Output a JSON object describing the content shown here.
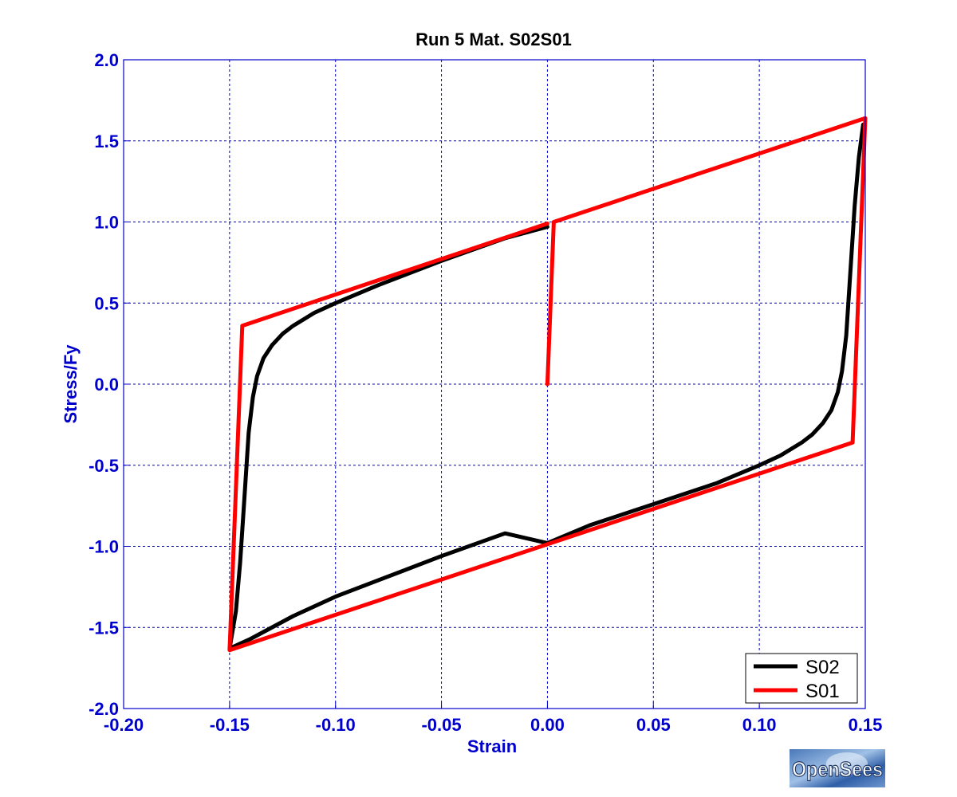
{
  "colors": {
    "axis": "#0000cc",
    "grid": "#0000cc",
    "series_S02": "#000000",
    "series_S01": "#ff0000"
  },
  "logo": {
    "text": "OpenSees"
  },
  "chart_data": {
    "type": "line",
    "title": "Run 5   Mat. S02S01",
    "xlabel": "Strain",
    "ylabel": "Stress/Fy",
    "xlim": [
      -0.2,
      0.15
    ],
    "ylim": [
      -2.0,
      2.0
    ],
    "xticks": [
      -0.2,
      -0.15,
      -0.1,
      -0.05,
      0.0,
      0.05,
      0.1,
      0.15
    ],
    "xtick_labels": [
      "-0.20",
      "-0.15",
      "-0.10",
      "-0.05",
      "0.00",
      "0.05",
      "0.10",
      "0.15"
    ],
    "yticks": [
      -2.0,
      -1.5,
      -1.0,
      -0.5,
      0.0,
      0.5,
      1.0,
      1.5,
      2.0
    ],
    "ytick_labels": [
      "-2.0",
      "-1.5",
      "-1.0",
      "-0.5",
      "0.0",
      "0.5",
      "1.0",
      "1.5",
      "2.0"
    ],
    "grid": true,
    "legend": "bottom-right",
    "series": [
      {
        "name": "S02",
        "x": [
          0.0,
          -0.02,
          -0.05,
          -0.08,
          -0.1,
          -0.11,
          -0.12,
          -0.125,
          -0.13,
          -0.134,
          -0.137,
          -0.139,
          -0.141,
          -0.143,
          -0.145,
          -0.147,
          -0.15,
          -0.14,
          -0.12,
          -0.1,
          -0.08,
          -0.05,
          -0.02,
          0.0,
          0.02,
          0.05,
          0.08,
          0.1,
          0.11,
          0.12,
          0.125,
          0.13,
          0.134,
          0.137,
          0.139,
          0.141,
          0.143,
          0.145,
          0.147,
          0.149
        ],
        "y": [
          0.97,
          0.9,
          0.76,
          0.61,
          0.5,
          0.44,
          0.36,
          0.31,
          0.24,
          0.16,
          0.05,
          -0.08,
          -0.3,
          -0.7,
          -1.1,
          -1.4,
          -1.63,
          -1.57,
          -1.43,
          -1.31,
          -1.21,
          -1.06,
          -0.92,
          -0.98,
          -0.87,
          -0.74,
          -0.61,
          -0.5,
          -0.44,
          -0.36,
          -0.31,
          -0.24,
          -0.16,
          -0.05,
          0.08,
          0.3,
          0.7,
          1.1,
          1.4,
          1.6
        ]
      },
      {
        "name": "S01",
        "x": [
          0.0,
          0.003,
          0.15,
          0.144,
          -0.15,
          -0.144,
          0.0
        ],
        "y": [
          0.0,
          1.0,
          1.64,
          -0.36,
          -1.64,
          0.36,
          0.99
        ]
      }
    ]
  }
}
